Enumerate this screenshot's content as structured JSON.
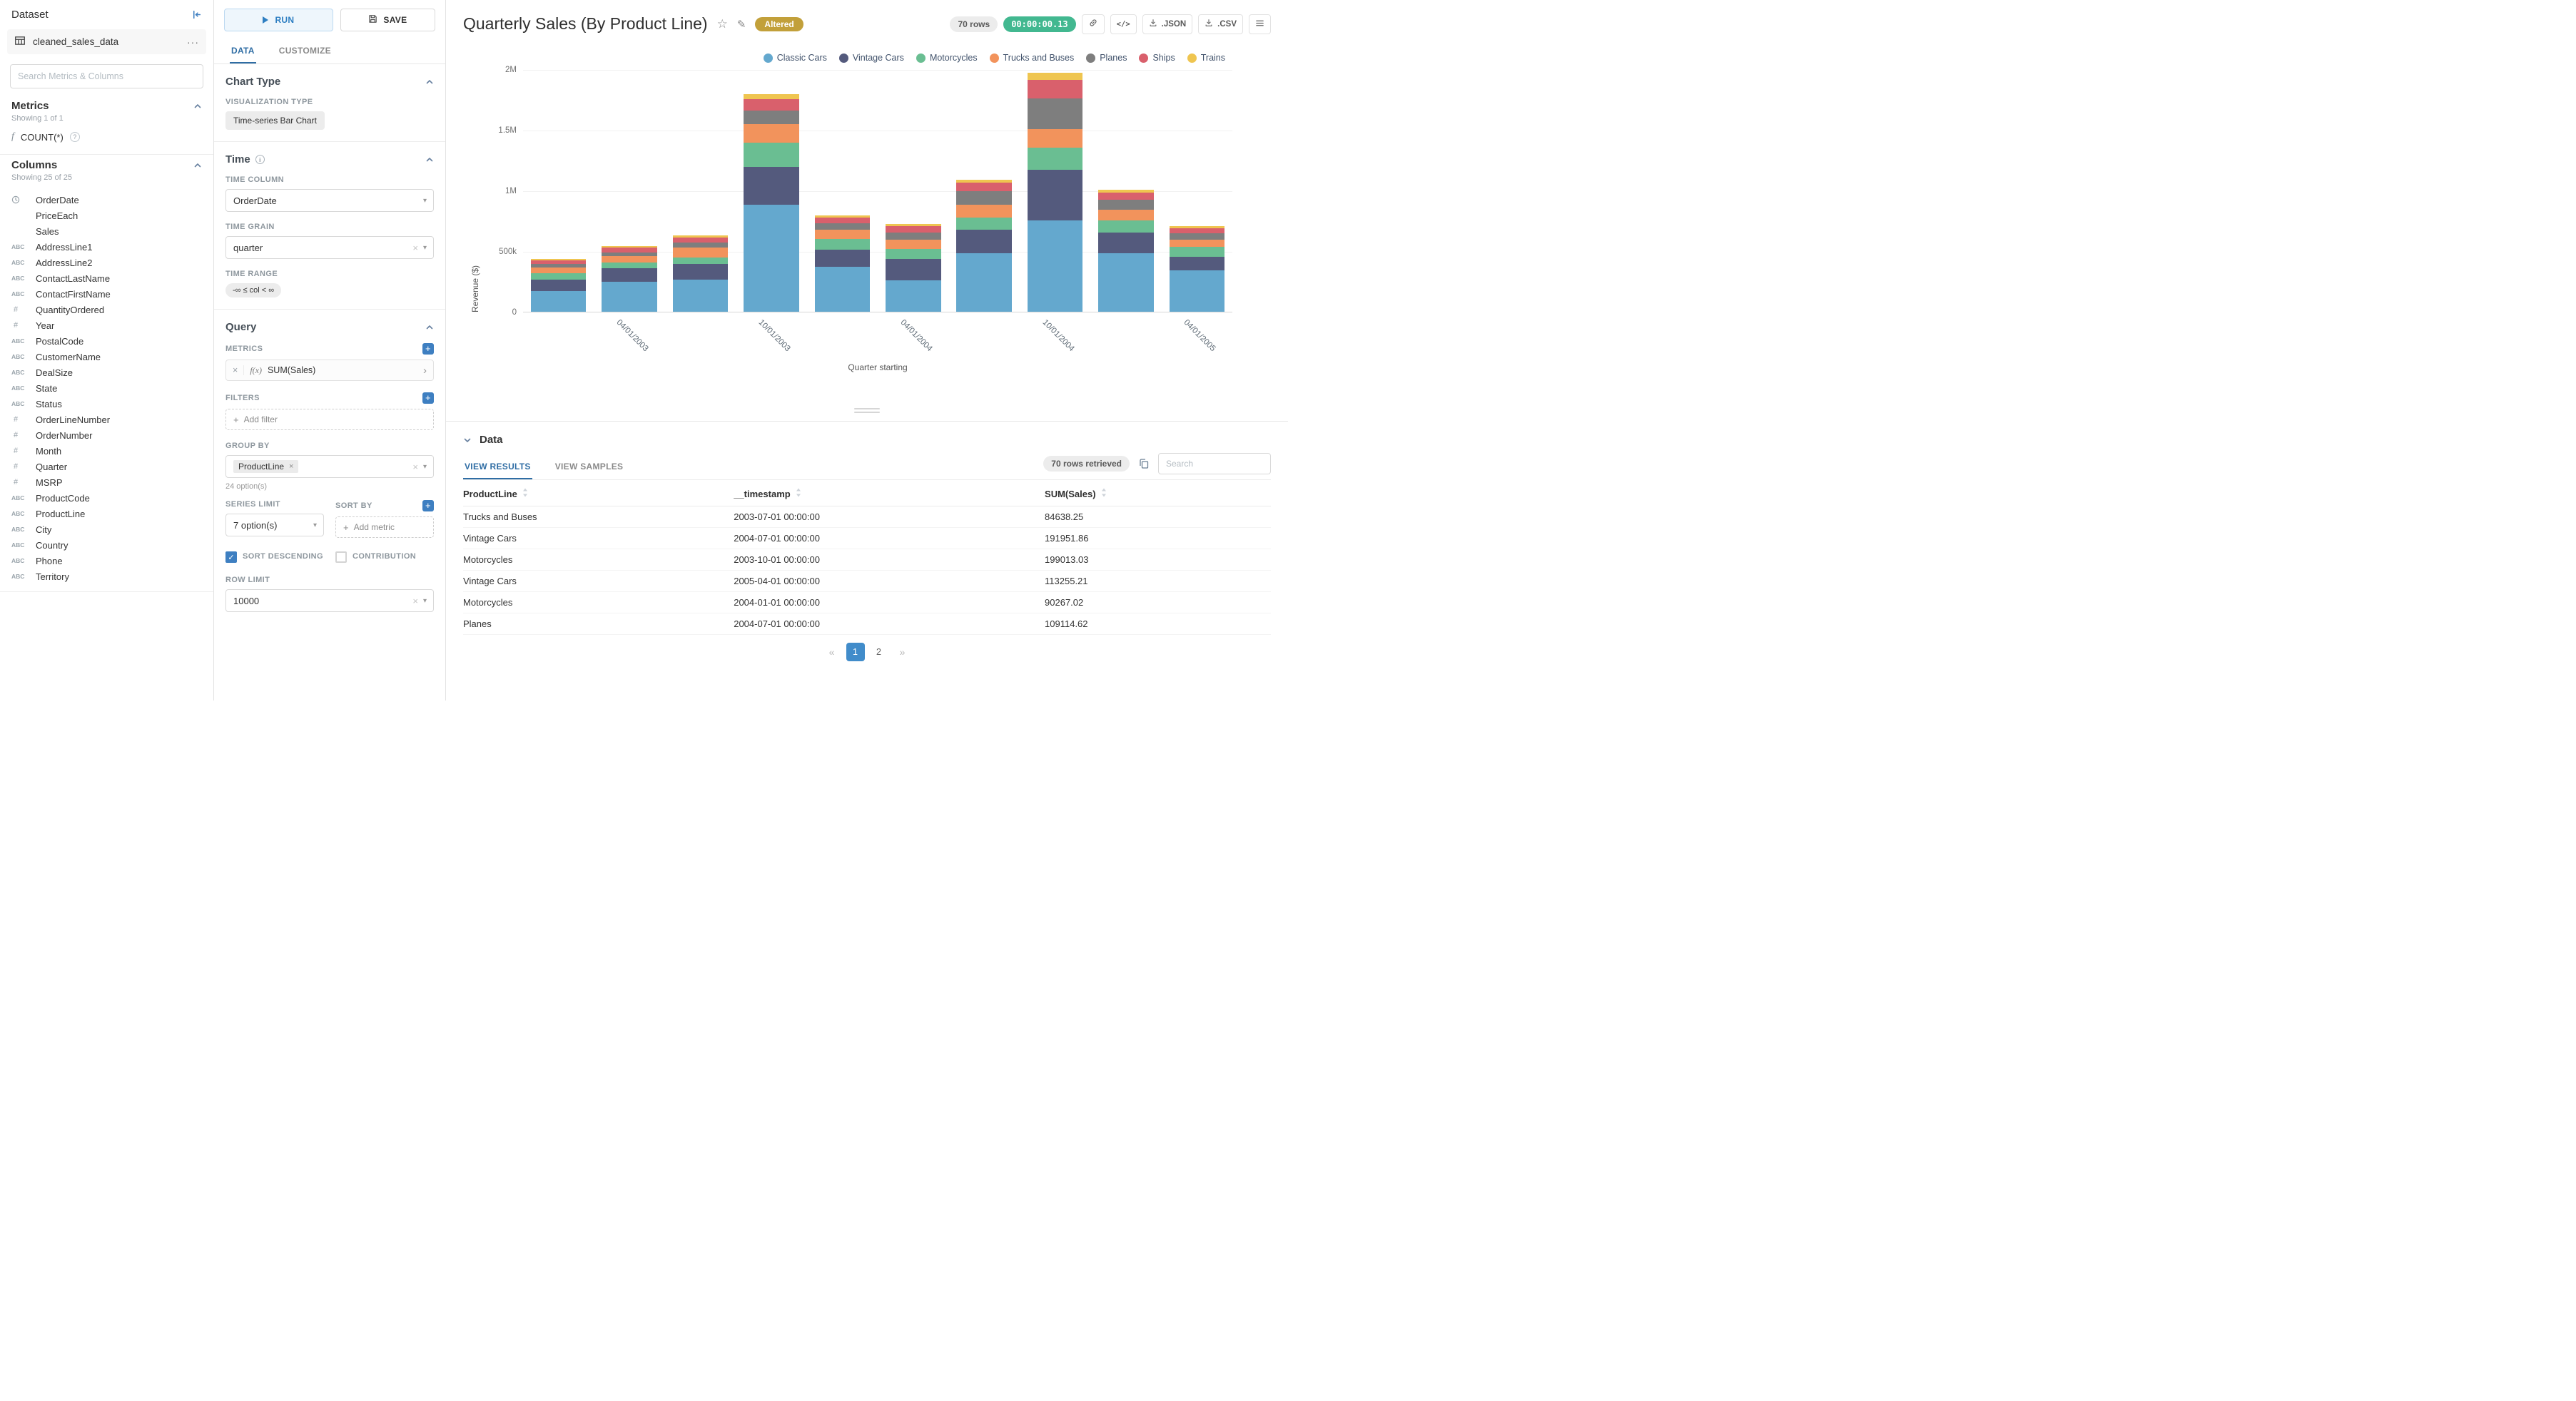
{
  "colors": {
    "primary_blue": "#3e7fc1",
    "timer_green": "#42b890",
    "altered_gold": "#c2a03a",
    "active_page_blue": "#418cca"
  },
  "dataset_panel": {
    "title": "Dataset",
    "dataset_name": "cleaned_sales_data",
    "search_placeholder": "Search Metrics & Columns",
    "metrics": {
      "header": "Metrics",
      "showing": "Showing 1 of 1",
      "items": [
        {
          "icon": "function",
          "label": "COUNT(*)"
        }
      ]
    },
    "columns": {
      "header": "Columns",
      "showing": "Showing 25 of 25",
      "items": [
        {
          "type": "clock",
          "label": "OrderDate"
        },
        {
          "type": "",
          "label": "PriceEach"
        },
        {
          "type": "",
          "label": "Sales"
        },
        {
          "type": "abc",
          "label": "AddressLine1"
        },
        {
          "type": "abc",
          "label": "AddressLine2"
        },
        {
          "type": "abc",
          "label": "ContactLastName"
        },
        {
          "type": "abc",
          "label": "ContactFirstName"
        },
        {
          "type": "hash",
          "label": "QuantityOrdered"
        },
        {
          "type": "hash",
          "label": "Year"
        },
        {
          "type": "abc",
          "label": "PostalCode"
        },
        {
          "type": "abc",
          "label": "CustomerName"
        },
        {
          "type": "abc",
          "label": "DealSize"
        },
        {
          "type": "abc",
          "label": "State"
        },
        {
          "type": "abc",
          "label": "Status"
        },
        {
          "type": "hash",
          "label": "OrderLineNumber"
        },
        {
          "type": "hash",
          "label": "OrderNumber"
        },
        {
          "type": "hash",
          "label": "Month"
        },
        {
          "type": "hash",
          "label": "Quarter"
        },
        {
          "type": "hash",
          "label": "MSRP"
        },
        {
          "type": "abc",
          "label": "ProductCode"
        },
        {
          "type": "abc",
          "label": "ProductLine"
        },
        {
          "type": "abc",
          "label": "City"
        },
        {
          "type": "abc",
          "label": "Country"
        },
        {
          "type": "abc",
          "label": "Phone"
        },
        {
          "type": "abc",
          "label": "Territory"
        }
      ]
    }
  },
  "control_panel": {
    "run_label": "RUN",
    "save_label": "SAVE",
    "tabs": [
      "DATA",
      "CUSTOMIZE"
    ],
    "sections": {
      "chart_type": "Chart Type",
      "time": "Time",
      "query": "Query"
    },
    "visualization_type_label": "VISUALIZATION TYPE",
    "visualization_type": "Time-series Bar Chart",
    "time_column_label": "TIME COLUMN",
    "time_column": "OrderDate",
    "time_grain_label": "TIME GRAIN",
    "time_grain": "quarter",
    "time_range_label": "TIME RANGE",
    "time_range": "-∞ ≤ col < ∞",
    "metrics_label": "METRICS",
    "metric_prefix": "f(x)",
    "metric_value": "SUM(Sales)",
    "filters_label": "FILTERS",
    "add_filter_label": "Add filter",
    "group_by_label": "GROUP BY",
    "group_by_value": "ProductLine",
    "group_by_hint": "24 option(s)",
    "series_limit_label": "SERIES LIMIT",
    "series_limit_value": "7 option(s)",
    "sort_by_label": "SORT BY",
    "add_metric_label": "Add metric",
    "sort_descending_label": "SORT DESCENDING",
    "contribution_label": "CONTRIBUTION",
    "row_limit_label": "ROW LIMIT",
    "row_limit_value": "10000"
  },
  "header": {
    "title": "Quarterly Sales (By Product Line)",
    "altered_badge": "Altered",
    "rows_badge": "70 rows",
    "timer_badge": "00:00:00.13",
    "embed_code_label": "</>",
    "json_label": ".JSON",
    "csv_label": ".CSV"
  },
  "chart_data": {
    "type": "bar",
    "stacked": true,
    "title": "Quarterly Sales (By Product Line)",
    "xlabel": "Quarter starting",
    "ylabel": "Revenue ($)",
    "ylim": [
      0,
      2000000
    ],
    "yticks": [
      "0",
      "500k",
      "1M",
      "1.5M",
      "2M"
    ],
    "legend_position": "top-right",
    "categories": [
      "2003-01-01",
      "2003-04-01",
      "2003-07-01",
      "2003-10-01",
      "2004-01-01",
      "2004-04-01",
      "2004-07-01",
      "2004-10-01",
      "2005-01-01",
      "2005-04-01"
    ],
    "x_tick_labels": [
      "",
      "04/01/2003",
      "",
      "10/01/2003",
      "",
      "04/01/2004",
      "",
      "10/01/2004",
      "",
      "04/01/2005"
    ],
    "series": [
      {
        "name": "Classic Cars",
        "color": "#64a8ce",
        "values": [
          170000,
          245000,
          265000,
          880000,
          370000,
          260000,
          480000,
          750000,
          480000,
          340000
        ]
      },
      {
        "name": "Vintage Cars",
        "color": "#545a7d",
        "values": [
          95000,
          110000,
          130000,
          310000,
          140000,
          175000,
          191951.86,
          420000,
          170000,
          113255.21
        ]
      },
      {
        "name": "Motorcycles",
        "color": "#6abe92",
        "values": [
          55000,
          45000,
          55000,
          199013.03,
          90267.02,
          85000,
          100000,
          180000,
          100000,
          80000
        ]
      },
      {
        "name": "Trucks and Buses",
        "color": "#f2935c",
        "values": [
          45000,
          55000,
          84638.25,
          150000,
          75000,
          75000,
          105000,
          150000,
          90000,
          60000
        ]
      },
      {
        "name": "Planes",
        "color": "#7e7e7e",
        "values": [
          30000,
          30000,
          40000,
          110000,
          55000,
          60000,
          109114.62,
          250000,
          85000,
          55000
        ]
      },
      {
        "name": "Ships",
        "color": "#d9606c",
        "values": [
          28000,
          40000,
          40000,
          95000,
          45000,
          50000,
          70000,
          150000,
          60000,
          40000
        ]
      },
      {
        "name": "Trains",
        "color": "#efc550",
        "values": [
          10000,
          12000,
          15000,
          40000,
          18000,
          20000,
          25000,
          60000,
          25000,
          18000
        ]
      }
    ]
  },
  "results_panel": {
    "section_title": "Data",
    "tabs": [
      "VIEW RESULTS",
      "VIEW SAMPLES"
    ],
    "rows_retrieved": "70 rows retrieved",
    "search_placeholder": "Search",
    "table": {
      "headers": [
        "ProductLine",
        "__timestamp",
        "SUM(Sales)"
      ],
      "rows": [
        [
          "Trucks and Buses",
          "2003-07-01 00:00:00",
          "84638.25"
        ],
        [
          "Vintage Cars",
          "2004-07-01 00:00:00",
          "191951.86"
        ],
        [
          "Motorcycles",
          "2003-10-01 00:00:00",
          "199013.03"
        ],
        [
          "Vintage Cars",
          "2005-04-01 00:00:00",
          "113255.21"
        ],
        [
          "Motorcycles",
          "2004-01-01 00:00:00",
          "90267.02"
        ],
        [
          "Planes",
          "2004-07-01 00:00:00",
          "109114.62"
        ]
      ]
    },
    "pagination": {
      "prev": "«",
      "pages": [
        "1",
        "2"
      ],
      "next": "»",
      "active": "1"
    }
  }
}
